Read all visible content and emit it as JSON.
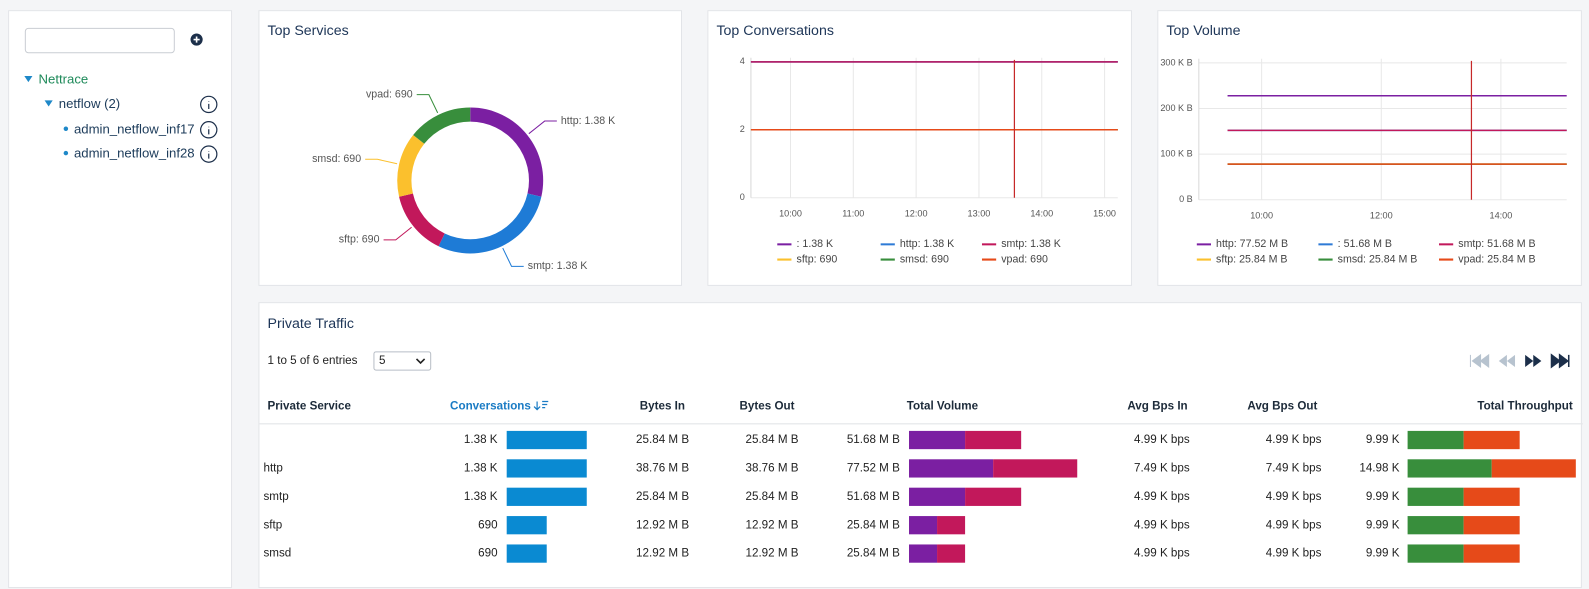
{
  "sidebar": {
    "tree": [
      {
        "label": "Nettrace"
      },
      {
        "label": "netflow (2)"
      },
      {
        "label": "admin_netflow_inf17"
      },
      {
        "label": "admin_netflow_inf28"
      }
    ]
  },
  "top_services": {
    "type": "pie",
    "title": "Top Services",
    "values": [
      1380,
      1380,
      690,
      690,
      690
    ],
    "value_labels": [
      "http: 1.38 K",
      "smtp: 1.38 K",
      "sftp: 690",
      "smsd: 690",
      "vpad: 690"
    ],
    "colors": [
      "#7b1fa2",
      "#1e7bd6",
      "#c2185b",
      "#fbc02d",
      "#388e3c"
    ]
  },
  "top_conversations": {
    "type": "line",
    "title": "Top Conversations",
    "x": [
      9.37,
      15.21
    ],
    "xlim": [
      9.37,
      15.21
    ],
    "xticks": [
      {
        "value": 10,
        "label": "10:00"
      },
      {
        "value": 11,
        "label": "11:00"
      },
      {
        "value": 12,
        "label": "12:00"
      },
      {
        "value": 13,
        "label": "13:00"
      },
      {
        "value": 14,
        "label": "14:00"
      },
      {
        "value": 15,
        "label": "15:00"
      }
    ],
    "ylim": [
      0,
      4
    ],
    "yticks": [
      0,
      2,
      4
    ],
    "grid": true,
    "series": [
      {
        "name": ": 1.38 K",
        "color": "#7b1fa2",
        "values": [
          4,
          4
        ]
      },
      {
        "name": "http: 1.38 K",
        "color": "#2e7bd6",
        "values": [
          4,
          4
        ]
      },
      {
        "name": "smtp: 1.38 K",
        "color": "#c2185b",
        "values": [
          4,
          4
        ]
      },
      {
        "name": "sftp: 690",
        "color": "#fbc02d",
        "values": [
          2,
          2
        ]
      },
      {
        "name": "smsd: 690",
        "color": "#388e3c",
        "values": [
          2,
          2
        ]
      },
      {
        "name": "vpad: 690",
        "color": "#e64a19",
        "values": [
          2,
          2
        ]
      }
    ]
  },
  "top_volume": {
    "type": "line",
    "title": "Top Volume",
    "x": [
      9.43,
      15.1
    ],
    "xlim": [
      8.95,
      15.1
    ],
    "xticks": [
      {
        "value": 10,
        "label": "10:00"
      },
      {
        "value": 12,
        "label": "12:00"
      },
      {
        "value": 14,
        "label": "14:00"
      }
    ],
    "ylim": [
      0,
      300
    ],
    "yticks": [
      {
        "value": 0,
        "label": "0 B"
      },
      {
        "value": 100,
        "label": "100 K B"
      },
      {
        "value": 200,
        "label": "200 K B"
      },
      {
        "value": 300,
        "label": "300 K B"
      }
    ],
    "grid": true,
    "series": [
      {
        "name": "http: 77.52 M B",
        "color": "#7b1fa2",
        "values": [
          228,
          228
        ]
      },
      {
        "name": ": 51.68 M B",
        "color": "#2e7bd6",
        "values": [
          152,
          152
        ]
      },
      {
        "name": "smtp: 51.68 M B",
        "color": "#c2185b",
        "values": [
          152,
          152
        ]
      },
      {
        "name": "sftp: 25.84 M B",
        "color": "#fbc02d",
        "values": [
          78,
          78
        ]
      },
      {
        "name": "smsd: 25.84 M B",
        "color": "#388e3c",
        "values": [
          78,
          78
        ]
      },
      {
        "name": "vpad: 25.84 M B",
        "color": "#e64a19",
        "values": [
          78,
          78
        ]
      }
    ]
  },
  "private_traffic": {
    "title": "Private Traffic",
    "info": "1 to 5 of 6 entries",
    "page_size": "5",
    "columns": [
      "Private Service",
      "Conversations",
      "Bytes In",
      "Bytes Out",
      "Total Volume",
      "Avg Bps In",
      "Avg Bps Out",
      "Total Throughput"
    ],
    "rows": [
      {
        "service": null,
        "conversations": {
          "value": 1380,
          "label": "1.38 K"
        },
        "bytes_in": {
          "value": 25.84,
          "label": "25.84 M B"
        },
        "bytes_out": {
          "value": 25.84,
          "label": "25.84 M B"
        },
        "total_volume": {
          "value": 51.68,
          "label": "51.68 M B"
        },
        "avg_bps_in": {
          "value": 4.99,
          "label": "4.99 K bps"
        },
        "avg_bps_out": {
          "value": 4.99,
          "label": "4.99 K bps"
        },
        "total_throughput": {
          "value": 9.99,
          "label": "9.99 K"
        }
      },
      {
        "service": "http",
        "conversations": {
          "value": 1380,
          "label": "1.38 K"
        },
        "bytes_in": {
          "value": 38.76,
          "label": "38.76 M B"
        },
        "bytes_out": {
          "value": 38.76,
          "label": "38.76 M B"
        },
        "total_volume": {
          "value": 77.52,
          "label": "77.52 M B"
        },
        "avg_bps_in": {
          "value": 7.49,
          "label": "7.49 K bps"
        },
        "avg_bps_out": {
          "value": 7.49,
          "label": "7.49 K bps"
        },
        "total_throughput": {
          "value": 14.98,
          "label": "14.98 K"
        }
      },
      {
        "service": "smtp",
        "conversations": {
          "value": 1380,
          "label": "1.38 K"
        },
        "bytes_in": {
          "value": 25.84,
          "label": "25.84 M B"
        },
        "bytes_out": {
          "value": 25.84,
          "label": "25.84 M B"
        },
        "total_volume": {
          "value": 51.68,
          "label": "51.68 M B"
        },
        "avg_bps_in": {
          "value": 4.99,
          "label": "4.99 K bps"
        },
        "avg_bps_out": {
          "value": 4.99,
          "label": "4.99 K bps"
        },
        "total_throughput": {
          "value": 9.99,
          "label": "9.99 K"
        }
      },
      {
        "service": "sftp",
        "conversations": {
          "value": 690,
          "label": "690"
        },
        "bytes_in": {
          "value": 12.92,
          "label": "12.92 M B"
        },
        "bytes_out": {
          "value": 12.92,
          "label": "12.92 M B"
        },
        "total_volume": {
          "value": 25.84,
          "label": "25.84 M B"
        },
        "avg_bps_in": {
          "value": 4.99,
          "label": "4.99 K bps"
        },
        "avg_bps_out": {
          "value": 4.99,
          "label": "4.99 K bps"
        },
        "total_throughput": {
          "value": 9.99,
          "label": "9.99 K"
        }
      },
      {
        "service": "smsd",
        "conversations": {
          "value": 690,
          "label": "690"
        },
        "bytes_in": {
          "value": 12.92,
          "label": "12.92 M B"
        },
        "bytes_out": {
          "value": 12.92,
          "label": "12.92 M B"
        },
        "total_volume": {
          "value": 25.84,
          "label": "25.84 M B"
        },
        "avg_bps_in": {
          "value": 4.99,
          "label": "4.99 K bps"
        },
        "avg_bps_out": {
          "value": 4.99,
          "label": "4.99 K bps"
        },
        "total_throughput": {
          "value": 9.99,
          "label": "9.99 K"
        }
      }
    ]
  }
}
